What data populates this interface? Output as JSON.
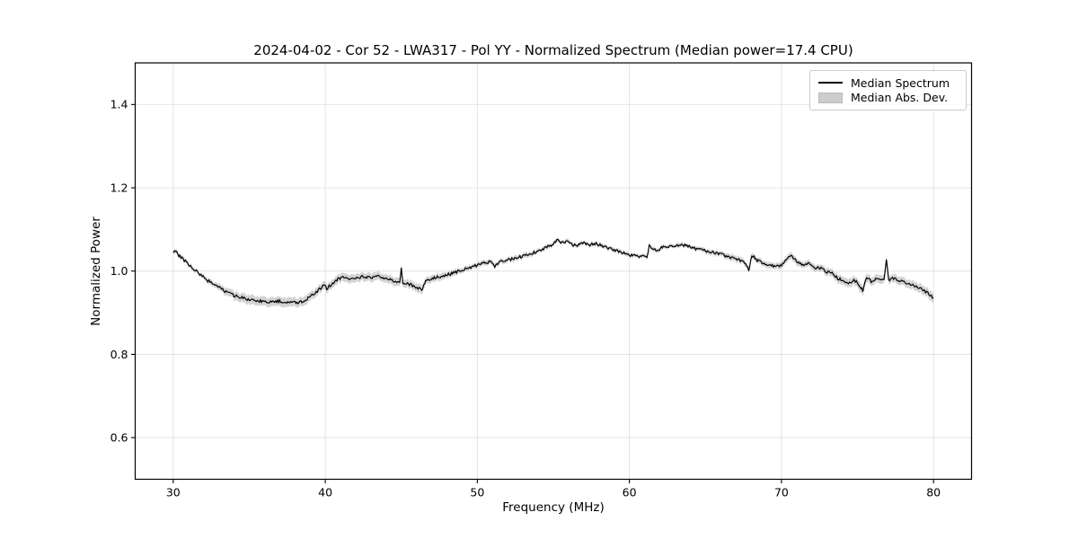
{
  "figure": {
    "background": "#ffffff"
  },
  "chart_data": {
    "type": "line",
    "title": "2024-04-02 - Cor 52 - LWA317 - Pol YY - Normalized Spectrum (Median power=17.4 CPU)",
    "xlabel": "Frequency (MHz)",
    "ylabel": "Normalized Power",
    "xlim": [
      27.5,
      82.5
    ],
    "ylim": [
      0.5,
      1.5
    ],
    "xticks": [
      30,
      40,
      50,
      60,
      70,
      80
    ],
    "yticks": [
      0.6,
      0.8,
      1.0,
      1.2,
      1.4
    ],
    "grid": true,
    "legend_position": "upper right",
    "colors": {
      "line": "#000000",
      "band": "#9e9e9e",
      "grid": "#e0e0e0",
      "frame": "#000000",
      "band_opacity": "0.45"
    },
    "noise_amplitude": 0.0035,
    "noise_seed": 42,
    "legend": {
      "entries": [
        {
          "label": "Median Spectrum",
          "type": "line",
          "color": "#000000"
        },
        {
          "label": "Median Abs. Dev.",
          "type": "patch",
          "color": "#cdcdcd"
        }
      ]
    },
    "series": [
      {
        "name": "Median Spectrum",
        "x": [
          30.0,
          30.1,
          30.3,
          30.5,
          30.8,
          31.0,
          31.3,
          31.6,
          31.9,
          32.2,
          32.5,
          32.8,
          33.1,
          33.4,
          33.7,
          34.0,
          34.3,
          34.6,
          35.0,
          35.4,
          35.8,
          36.2,
          36.6,
          37.0,
          37.4,
          37.8,
          38.2,
          38.6,
          39.0,
          39.4,
          39.7,
          39.9,
          40.1,
          40.4,
          40.7,
          41.1,
          41.5,
          42.0,
          42.5,
          43.0,
          43.5,
          44.0,
          44.4,
          44.7,
          44.9,
          45.0,
          45.1,
          45.4,
          45.8,
          46.1,
          46.35,
          46.6,
          46.9,
          47.3,
          47.7,
          48.1,
          48.5,
          49.0,
          49.5,
          50.0,
          50.5,
          50.9,
          51.15,
          51.4,
          51.8,
          52.2,
          52.6,
          53.0,
          53.5,
          54.0,
          54.5,
          55.0,
          55.3,
          55.5,
          55.9,
          56.2,
          56.6,
          57.0,
          57.4,
          57.8,
          58.2,
          58.6,
          59.0,
          59.5,
          60.0,
          60.5,
          61.0,
          61.15,
          61.3,
          61.6,
          61.9,
          62.1,
          62.5,
          63.0,
          63.5,
          64.0,
          64.5,
          65.0,
          65.5,
          66.0,
          66.5,
          67.0,
          67.5,
          67.85,
          68.05,
          68.4,
          68.8,
          69.2,
          69.6,
          70.0,
          70.4,
          70.7,
          71.0,
          71.4,
          71.8,
          72.2,
          72.6,
          73.0,
          73.4,
          73.7,
          74.0,
          74.4,
          74.7,
          75.0,
          75.35,
          75.6,
          75.9,
          76.2,
          76.5,
          76.75,
          76.9,
          77.05,
          77.3,
          77.6,
          77.9,
          78.2,
          78.5,
          78.8,
          79.1,
          79.4,
          79.7,
          80.0
        ],
        "y": [
          1.046,
          1.051,
          1.04,
          1.033,
          1.024,
          1.017,
          1.006,
          0.997,
          0.989,
          0.979,
          0.972,
          0.966,
          0.958,
          0.952,
          0.947,
          0.941,
          0.938,
          0.935,
          0.931,
          0.929,
          0.927,
          0.926,
          0.926,
          0.928,
          0.925,
          0.926,
          0.925,
          0.927,
          0.938,
          0.95,
          0.958,
          0.967,
          0.958,
          0.968,
          0.978,
          0.985,
          0.981,
          0.984,
          0.987,
          0.983,
          0.988,
          0.982,
          0.978,
          0.971,
          0.974,
          1.008,
          0.972,
          0.969,
          0.965,
          0.959,
          0.955,
          0.976,
          0.981,
          0.984,
          0.988,
          0.992,
          0.996,
          1.003,
          1.008,
          1.014,
          1.02,
          1.023,
          1.012,
          1.021,
          1.025,
          1.028,
          1.031,
          1.036,
          1.041,
          1.048,
          1.056,
          1.064,
          1.077,
          1.067,
          1.073,
          1.064,
          1.061,
          1.068,
          1.063,
          1.066,
          1.06,
          1.056,
          1.051,
          1.045,
          1.038,
          1.035,
          1.038,
          1.031,
          1.06,
          1.053,
          1.049,
          1.059,
          1.059,
          1.061,
          1.062,
          1.059,
          1.052,
          1.048,
          1.046,
          1.041,
          1.035,
          1.029,
          1.022,
          1.003,
          1.039,
          1.025,
          1.019,
          1.015,
          1.011,
          1.015,
          1.03,
          1.036,
          1.024,
          1.016,
          1.017,
          1.009,
          1.007,
          0.998,
          0.995,
          0.982,
          0.979,
          0.968,
          0.978,
          0.973,
          0.952,
          0.985,
          0.975,
          0.981,
          0.977,
          0.983,
          1.027,
          0.977,
          0.983,
          0.978,
          0.976,
          0.972,
          0.968,
          0.963,
          0.958,
          0.953,
          0.946,
          0.936
        ]
      },
      {
        "name": "Median Abs. Dev.",
        "band_half_width": [
          0.005,
          0.005,
          0.005,
          0.005,
          0.005,
          0.005,
          0.005,
          0.005,
          0.005,
          0.006,
          0.006,
          0.006,
          0.008,
          0.009,
          0.009,
          0.01,
          0.01,
          0.011,
          0.011,
          0.011,
          0.011,
          0.011,
          0.011,
          0.011,
          0.011,
          0.011,
          0.011,
          0.011,
          0.01,
          0.01,
          0.01,
          0.01,
          0.01,
          0.01,
          0.01,
          0.01,
          0.01,
          0.01,
          0.01,
          0.01,
          0.01,
          0.01,
          0.01,
          0.01,
          0.01,
          0.01,
          0.01,
          0.01,
          0.01,
          0.01,
          0.01,
          0.008,
          0.008,
          0.008,
          0.008,
          0.007,
          0.007,
          0.006,
          0.006,
          0.006,
          0.006,
          0.006,
          0.006,
          0.006,
          0.006,
          0.006,
          0.006,
          0.006,
          0.006,
          0.005,
          0.005,
          0.005,
          0.005,
          0.005,
          0.005,
          0.005,
          0.005,
          0.005,
          0.005,
          0.005,
          0.005,
          0.005,
          0.005,
          0.005,
          0.005,
          0.005,
          0.005,
          0.005,
          0.005,
          0.005,
          0.005,
          0.005,
          0.005,
          0.005,
          0.005,
          0.005,
          0.005,
          0.006,
          0.006,
          0.006,
          0.007,
          0.007,
          0.007,
          0.007,
          0.007,
          0.007,
          0.007,
          0.007,
          0.007,
          0.008,
          0.008,
          0.008,
          0.008,
          0.008,
          0.008,
          0.008,
          0.008,
          0.009,
          0.009,
          0.01,
          0.01,
          0.01,
          0.01,
          0.01,
          0.011,
          0.01,
          0.01,
          0.01,
          0.01,
          0.01,
          0.008,
          0.01,
          0.01,
          0.01,
          0.01,
          0.01,
          0.01,
          0.011,
          0.011,
          0.011,
          0.011,
          0.011
        ]
      }
    ]
  }
}
